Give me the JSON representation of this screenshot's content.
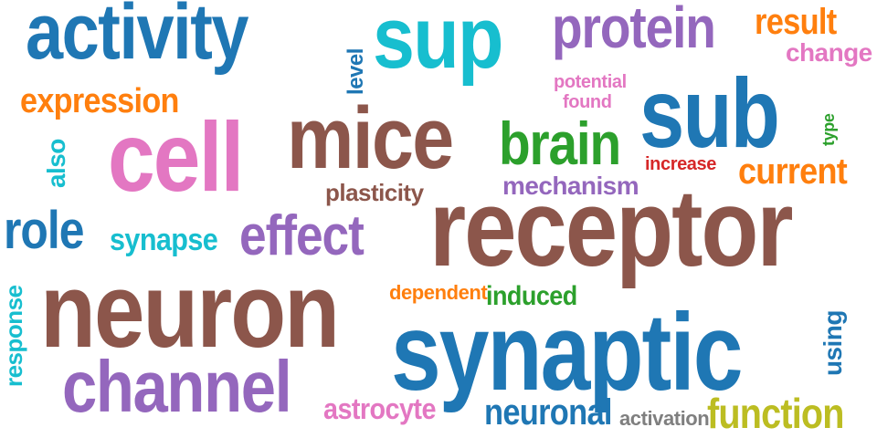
{
  "words": {
    "activity": "activity",
    "sup": "sup",
    "protein": "protein",
    "result": "result",
    "change": "change",
    "level": "level",
    "expression": "expression",
    "potential": "potential",
    "found": "found",
    "sub": "sub",
    "type": "type",
    "also": "also",
    "cell": "cell",
    "mice": "mice",
    "brain": "brain",
    "increase": "increase",
    "current": "current",
    "plasticity": "plasticity",
    "mechanism": "mechanism",
    "receptor": "receptor",
    "role": "role",
    "synapse": "synapse",
    "effect": "effect",
    "response": "response",
    "neuron": "neuron",
    "dependent": "dependent",
    "induced": "induced",
    "using": "using",
    "synaptic": "synaptic",
    "channel": "channel",
    "astrocyte": "astrocyte",
    "neuronal": "neuronal",
    "activation": "activation",
    "function": "function"
  },
  "colors": {
    "blue": "#1f77b4",
    "cyan": "#17becf",
    "purple": "#9467bd",
    "orange": "#ff7f0e",
    "pink": "#e377c2",
    "brown": "#8c564b",
    "green": "#2ca02c",
    "red": "#d62728",
    "olive": "#bcbd22",
    "gray": "#7f7f7f",
    "background": "#ffffff"
  }
}
